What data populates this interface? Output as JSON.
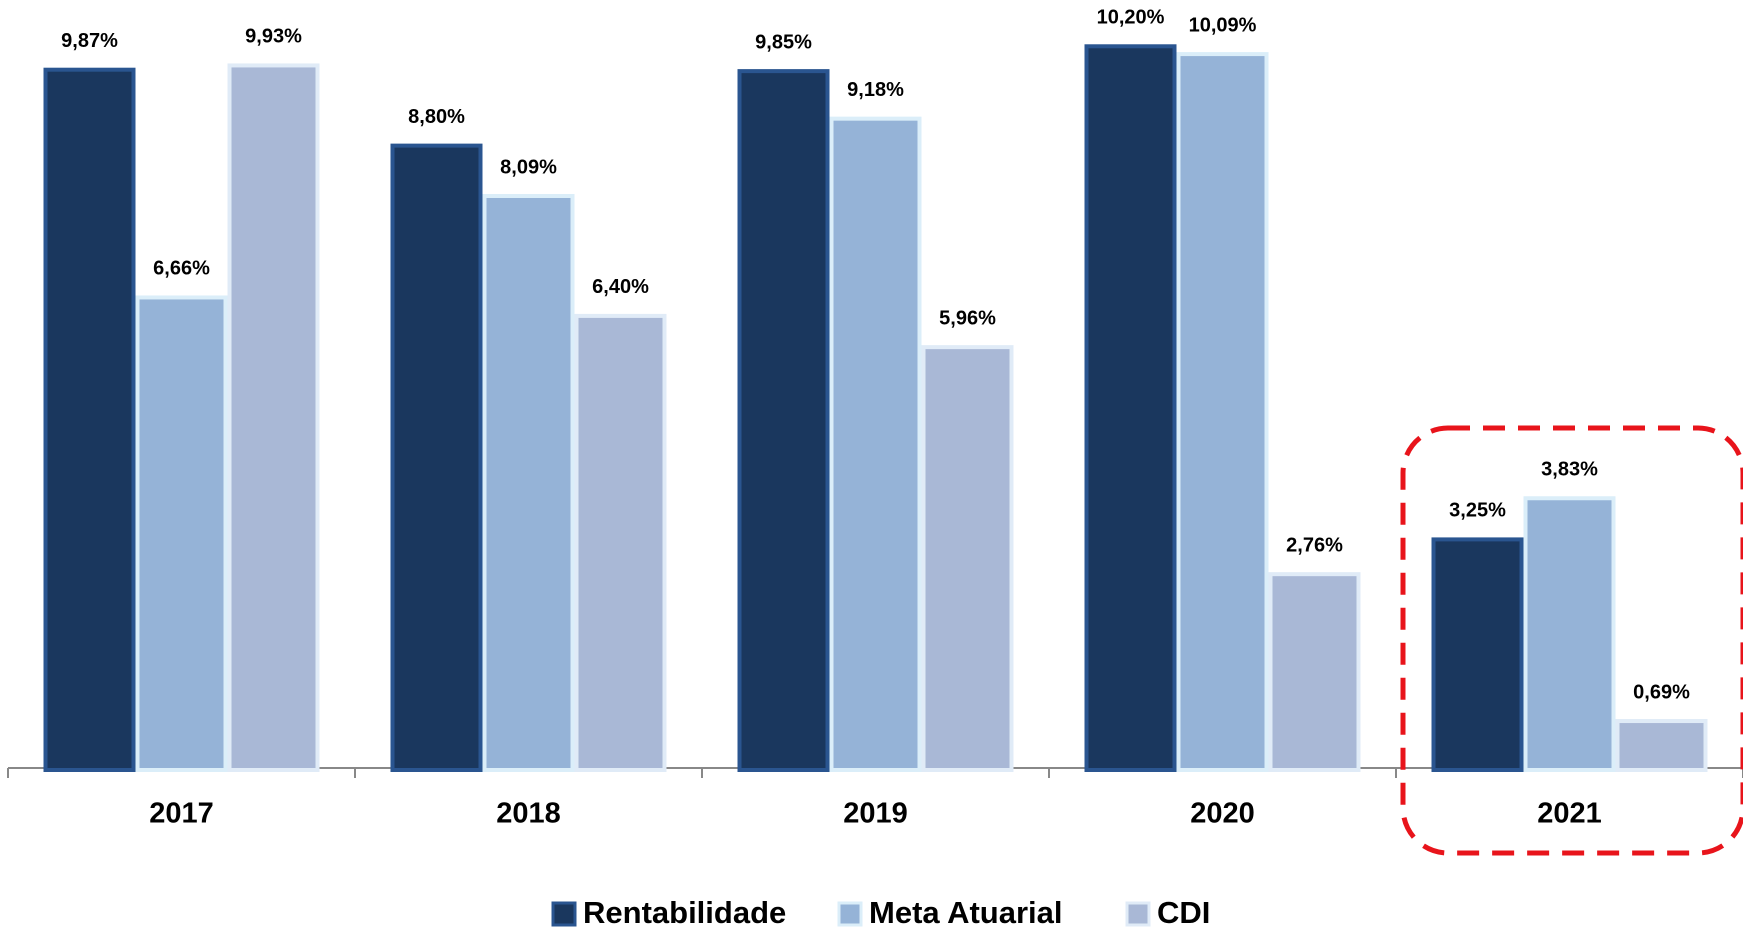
{
  "chart_data": {
    "type": "bar",
    "categories": [
      "2017",
      "2018",
      "2019",
      "2020",
      "2021"
    ],
    "series": [
      {
        "name": "Rentabilidade",
        "color": "#1a375e",
        "values": [
          9.87,
          8.8,
          9.85,
          10.2,
          3.25
        ],
        "value_labels": [
          "9,87%",
          "8,80%",
          "9,85%",
          "10,20%",
          "3,25%"
        ]
      },
      {
        "name": "Meta Atuarial",
        "color": "#95b3d7",
        "values": [
          6.66,
          8.09,
          9.18,
          10.09,
          3.83
        ],
        "value_labels": [
          "6,66%",
          "8,09%",
          "9,18%",
          "10,09%",
          "3,83%"
        ]
      },
      {
        "name": "CDI",
        "color": "#a9b8d6",
        "values": [
          9.93,
          6.4,
          5.96,
          2.76,
          0.69
        ],
        "value_labels": [
          "9,93%",
          "6,40%",
          "5,96%",
          "2,76%",
          "0,69%"
        ]
      }
    ],
    "ylim": [
      0,
      10.5
    ],
    "legend": "bottom"
  }
}
